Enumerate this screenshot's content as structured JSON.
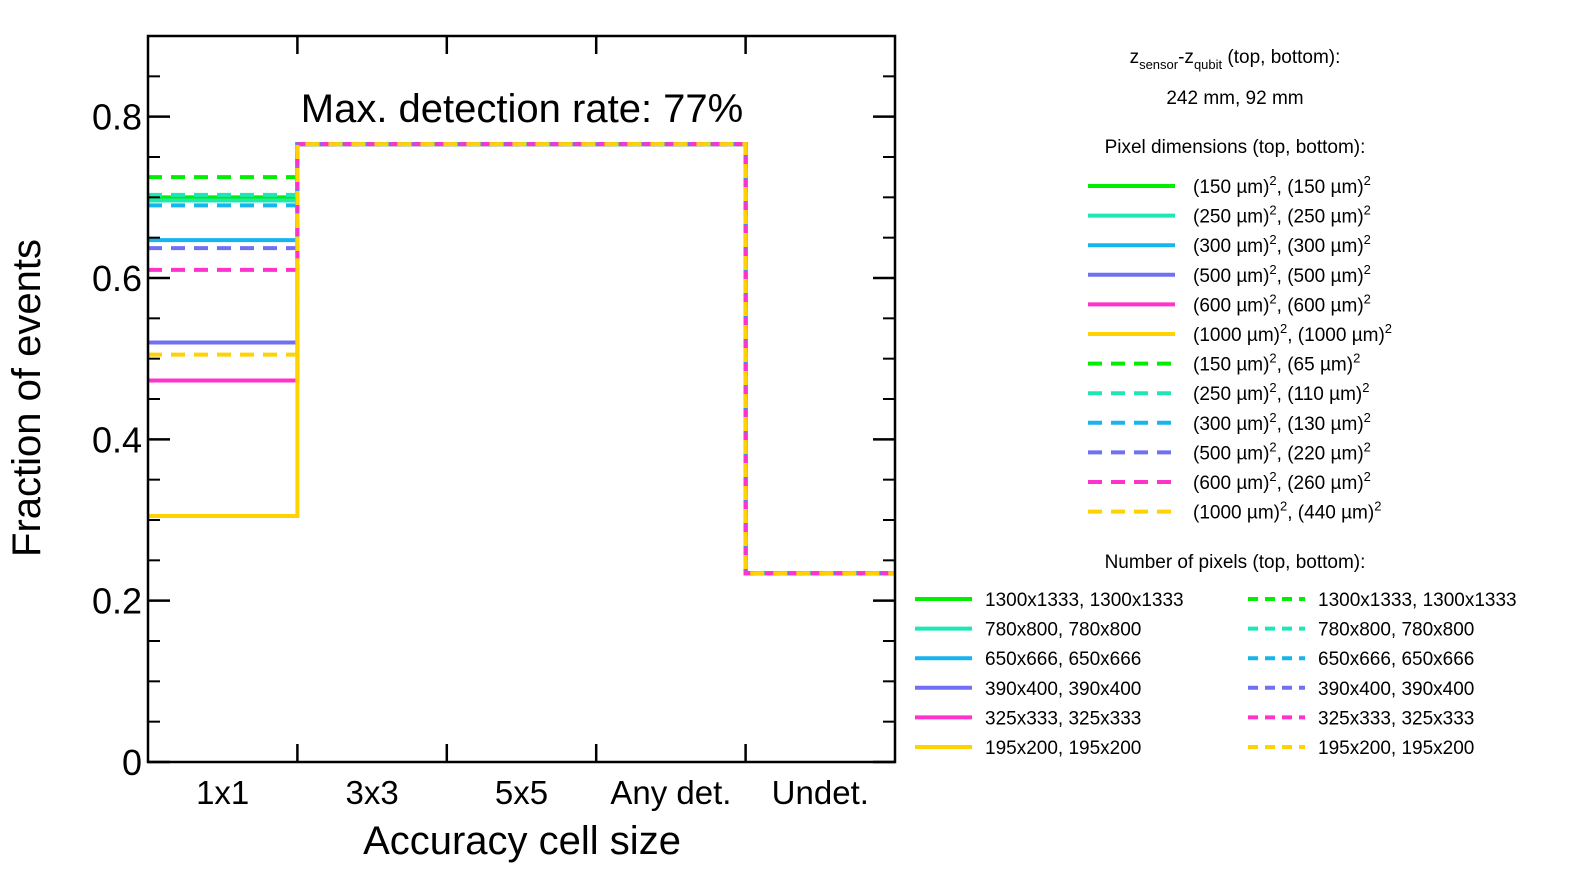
{
  "chart_data": {
    "type": "step",
    "annotation": "Max. detection rate: 77%",
    "xlabel": "Accuracy cell size",
    "ylabel": "Fraction of events",
    "categories": [
      "1x1",
      "3x3",
      "5x5",
      "Any det.",
      "Undet."
    ],
    "ylim": [
      0,
      0.9
    ],
    "yticks": [
      0,
      0.2,
      0.4,
      0.6,
      0.8
    ],
    "ytick_labels": [
      "0",
      "0.2",
      "0.4",
      "0.6",
      "0.8"
    ],
    "series": [
      {
        "name": "(150 µm)², (150 µm)²",
        "count_label": "1300x1333, 1300x1333",
        "color": "#00ee00",
        "dash": "solid",
        "values": [
          0.7,
          0.766,
          0.766,
          0.766,
          0.234
        ]
      },
      {
        "name": "(250 µm)², (250 µm)²",
        "count_label": "780x800, 780x800",
        "color": "#1de8b5",
        "dash": "solid",
        "values": [
          0.696,
          0.766,
          0.766,
          0.766,
          0.234
        ]
      },
      {
        "name": "(300 µm)², (300 µm)²",
        "count_label": "650x666, 650x666",
        "color": "#18b4ee",
        "dash": "solid",
        "values": [
          0.647,
          0.766,
          0.766,
          0.766,
          0.234
        ]
      },
      {
        "name": "(500 µm)², (500 µm)²",
        "count_label": "390x400, 390x400",
        "color": "#7070f5",
        "dash": "solid",
        "values": [
          0.52,
          0.766,
          0.766,
          0.766,
          0.234
        ]
      },
      {
        "name": "(600 µm)², (600 µm)²",
        "count_label": "325x333, 325x333",
        "color": "#ff33cc",
        "dash": "solid",
        "values": [
          0.473,
          0.766,
          0.766,
          0.766,
          0.234
        ]
      },
      {
        "name": "(1000 µm)², (1000 µm)²",
        "count_label": "195x200, 195x200",
        "color": "#ffd200",
        "dash": "solid",
        "values": [
          0.305,
          0.766,
          0.766,
          0.766,
          0.234
        ]
      },
      {
        "name": "(150 µm)², (65 µm)²",
        "count_label": "1300x1333, 1300x1333",
        "color": "#00ee00",
        "dash": "dashed",
        "values": [
          0.725,
          0.766,
          0.766,
          0.766,
          0.234
        ]
      },
      {
        "name": "(250 µm)², (110 µm)²",
        "count_label": "780x800, 780x800",
        "color": "#1de8b5",
        "dash": "dashed",
        "values": [
          0.703,
          0.766,
          0.766,
          0.766,
          0.234
        ]
      },
      {
        "name": "(300 µm)², (130 µm)²",
        "count_label": "650x666, 650x666",
        "color": "#18b4ee",
        "dash": "dashed",
        "values": [
          0.69,
          0.766,
          0.766,
          0.766,
          0.234
        ]
      },
      {
        "name": "(500 µm)², (220 µm)²",
        "count_label": "390x400, 390x400",
        "color": "#7070f5",
        "dash": "dashed",
        "values": [
          0.637,
          0.766,
          0.766,
          0.766,
          0.234
        ]
      },
      {
        "name": "(600 µm)², (260 µm)²",
        "count_label": "325x333, 325x333",
        "color": "#ff33cc",
        "dash": "dashed",
        "values": [
          0.61,
          0.766,
          0.766,
          0.766,
          0.234
        ]
      },
      {
        "name": "(1000 µm)², (440 µm)²",
        "count_label": "195x200, 195x200",
        "color": "#ffd200",
        "dash": "dashed",
        "values": [
          0.505,
          0.766,
          0.766,
          0.766,
          0.234
        ]
      }
    ],
    "legend_header": {
      "z_main": "z",
      "z_sub_sensor": "sensor",
      "z_dash": "-z",
      "z_sub_qubit": "qubit",
      "z_suffix": " (top, bottom):",
      "z_values": "242 mm, 92 mm",
      "pixel_dim_title": "Pixel dimensions (top, bottom):",
      "num_pixels_title": "Number of pixels (top, bottom):"
    },
    "pixel_dim_labels": [
      {
        "a": "150",
        "b": "150"
      },
      {
        "a": "250",
        "b": "250"
      },
      {
        "a": "300",
        "b": "300"
      },
      {
        "a": "500",
        "b": "500"
      },
      {
        "a": "600",
        "b": "600"
      },
      {
        "a": "1000",
        "b": "1000"
      },
      {
        "a": "150",
        "b": "65"
      },
      {
        "a": "250",
        "b": "110"
      },
      {
        "a": "300",
        "b": "130"
      },
      {
        "a": "500",
        "b": "220"
      },
      {
        "a": "600",
        "b": "260"
      },
      {
        "a": "1000",
        "b": "440"
      }
    ],
    "unit_um": "µm",
    "superscript": "2"
  }
}
